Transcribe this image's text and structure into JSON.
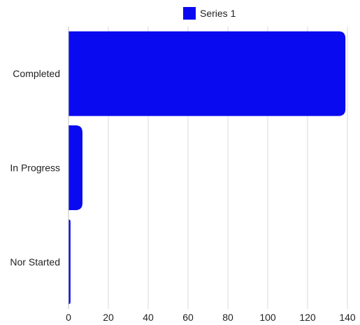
{
  "chart_data": {
    "type": "bar",
    "orientation": "horizontal",
    "categories": [
      "Completed",
      "In Progress",
      "Nor Started"
    ],
    "series": [
      {
        "name": "Series 1",
        "values": [
          139,
          7,
          1
        ],
        "color": "#0a0af0"
      }
    ],
    "xlim": [
      0,
      140
    ],
    "xticks": [
      "0",
      "20",
      "40",
      "60",
      "80",
      "100",
      "120",
      "140"
    ],
    "grid": true,
    "legend": "top-center"
  }
}
